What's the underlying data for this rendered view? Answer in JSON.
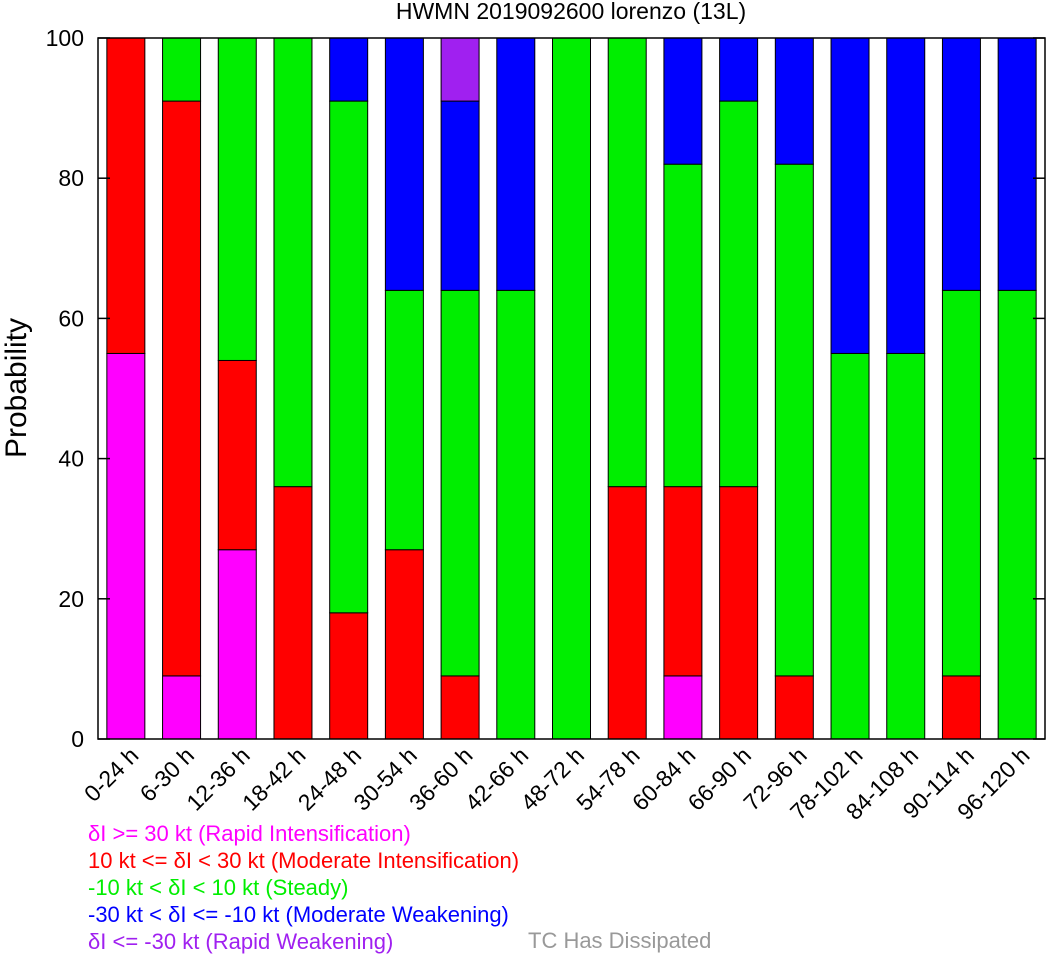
{
  "chart_data": {
    "type": "bar",
    "stacked": true,
    "title": "HWMN 2019092600 lorenzo (13L)",
    "xlabel": "",
    "ylabel": "Probability",
    "ylim": [
      0,
      100
    ],
    "yticks": [
      0,
      20,
      40,
      60,
      80,
      100
    ],
    "grid": false,
    "categories": [
      "0-24 h",
      "6-30 h",
      "12-36 h",
      "18-42 h",
      "24-48 h",
      "30-54 h",
      "36-60 h",
      "42-66 h",
      "48-72 h",
      "54-78 h",
      "60-84 h",
      "66-90 h",
      "72-96 h",
      "78-102 h",
      "84-108 h",
      "90-114 h",
      "96-120 h"
    ],
    "series": [
      {
        "name": "Rapid Intensification",
        "color": "#ff00ff",
        "values": [
          55,
          9,
          27,
          0,
          0,
          0,
          0,
          0,
          0,
          0,
          9,
          0,
          0,
          0,
          0,
          0,
          0
        ]
      },
      {
        "name": "Moderate Intensification",
        "color": "#ff0000",
        "values": [
          45,
          82,
          27,
          36,
          18,
          27,
          9,
          0,
          0,
          36,
          27,
          36,
          9,
          0,
          0,
          9,
          0
        ]
      },
      {
        "name": "Steady",
        "color": "#00ee00",
        "values": [
          0,
          9,
          46,
          64,
          73,
          37,
          55,
          64,
          100,
          64,
          46,
          55,
          73,
          55,
          55,
          55,
          64
        ]
      },
      {
        "name": "Moderate Weakening",
        "color": "#0000ff",
        "values": [
          0,
          0,
          0,
          0,
          9,
          36,
          27,
          36,
          0,
          0,
          18,
          9,
          18,
          45,
          45,
          36,
          36
        ]
      },
      {
        "name": "Rapid Weakening",
        "color": "#a020f0",
        "values": [
          0,
          0,
          0,
          0,
          0,
          0,
          9,
          0,
          0,
          0,
          0,
          0,
          0,
          0,
          0,
          0,
          0
        ]
      }
    ]
  },
  "legend": [
    {
      "text": "δI >= 30 kt (Rapid Intensification)",
      "color": "#ff00ff"
    },
    {
      "text": "10 kt <= δI < 30 kt (Moderate Intensification)",
      "color": "#ff0000"
    },
    {
      "text": "-10 kt < δI < 10 kt (Steady)",
      "color": "#00ee00"
    },
    {
      "text": "-30 kt < δI <= -10 kt (Moderate Weakening)",
      "color": "#0000ff"
    },
    {
      "text": "δI <= -30 kt (Rapid Weakening)",
      "color": "#a020f0"
    }
  ],
  "dissipated": {
    "text": "TC Has Dissipated",
    "color": "#999999"
  }
}
